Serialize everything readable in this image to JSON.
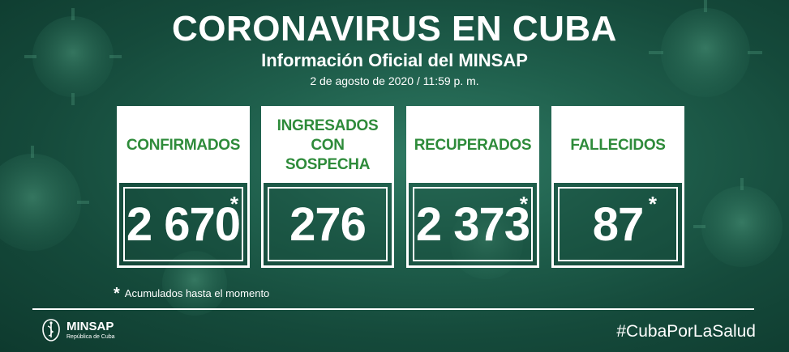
{
  "header": {
    "title": "CORONAVIRUS EN CUBA",
    "subtitle": "Información Oficial del MINSAP",
    "date": "2 de agosto de 2020 / 11:59 p. m."
  },
  "cards": [
    {
      "label_line1": "CONFIRMADOS",
      "label_line2": "",
      "value": "2 670",
      "star": "*"
    },
    {
      "label_line1": "INGRESADOS",
      "label_line2": "CON SOSPECHA",
      "value": "276",
      "star": ""
    },
    {
      "label_line1": "RECUPERADOS",
      "label_line2": "",
      "value": "2 373",
      "star": "*"
    },
    {
      "label_line1": "FALLECIDOS",
      "label_line2": "",
      "value": "87",
      "star": "*"
    }
  ],
  "note": {
    "star": "*",
    "text": "Acumulados hasta el momento"
  },
  "footer": {
    "logo_name": "MINSAP",
    "logo_sub": "República de Cuba",
    "logo_icon": "caduceus-emblem-icon",
    "hashtag": "#CubaPorLaSalud"
  },
  "colors": {
    "background": "#1f5f4c",
    "label_text": "#2e8b3a",
    "card_border": "#ffffff"
  }
}
